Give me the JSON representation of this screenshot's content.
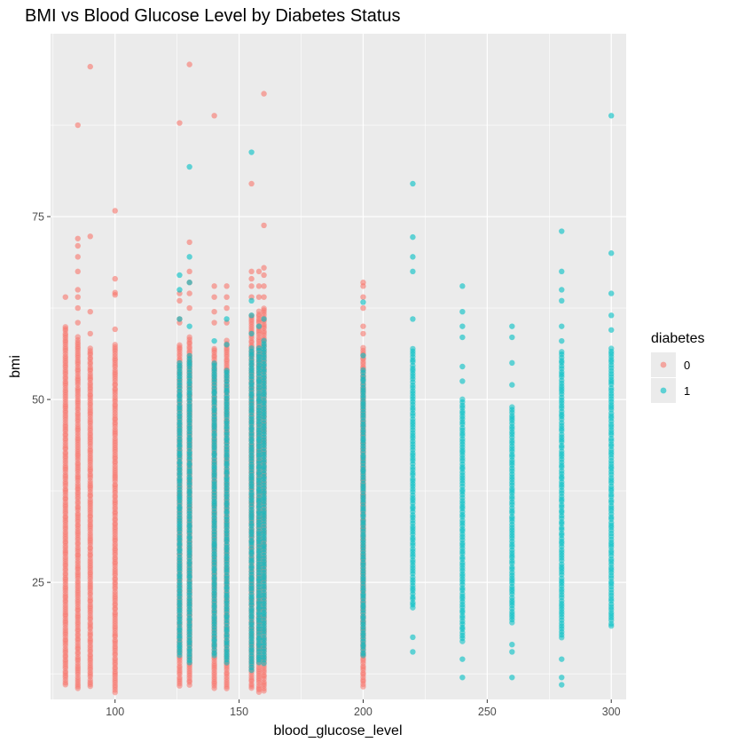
{
  "chart_data": {
    "type": "scatter",
    "title": "BMI vs Blood Glucose Level by Diabetes Status",
    "xlabel": "blood_glucose_level",
    "ylabel": "bmi",
    "xlim": [
      74,
      306
    ],
    "ylim": [
      9,
      100
    ],
    "x_ticks": [
      100,
      150,
      200,
      250,
      300
    ],
    "y_ticks": [
      25,
      50,
      75
    ],
    "grid": true,
    "legend": {
      "title": "diabetes",
      "placement": "right",
      "entries": [
        "0",
        "1"
      ]
    },
    "colors": {
      "0": "#F8766D",
      "1": "#00BFC4",
      "panel": "#EBEBEB",
      "grid_major": "#FFFFFF"
    },
    "series": [
      {
        "name": "0",
        "color": "#F8766D",
        "columns": [
          {
            "x": 80,
            "range": [
              11.0,
              60.0
            ],
            "outliers": [
              64.0
            ]
          },
          {
            "x": 85,
            "range": [
              10.5,
              58.5
            ],
            "outliers": [
              60.5,
              62.5,
              64.0,
              65.0,
              67.5,
              69.5,
              71.0,
              72.0,
              87.5
            ]
          },
          {
            "x": 90,
            "range": [
              10.8,
              57.0
            ],
            "outliers": [
              59.0,
              62.0,
              72.3,
              95.5
            ]
          },
          {
            "x": 100,
            "range": [
              10.0,
              57.5
            ],
            "outliers": [
              59.6,
              64.3,
              64.6,
              66.5,
              75.8
            ]
          },
          {
            "x": 126,
            "range": [
              10.8,
              57.5
            ],
            "outliers": [
              60.5,
              61.0,
              63.5,
              64.5,
              87.8
            ]
          },
          {
            "x": 130,
            "range": [
              11.0,
              58.5
            ],
            "outliers": [
              62.5,
              64.5,
              66.0,
              67.5,
              71.5,
              95.8
            ]
          },
          {
            "x": 140,
            "range": [
              10.5,
              57.0
            ],
            "outliers": [
              60.5,
              62.0,
              64.0,
              65.5,
              88.8
            ]
          },
          {
            "x": 145,
            "range": [
              10.5,
              58.0
            ],
            "outliers": [
              60.5,
              62.5,
              64.0,
              65.5
            ]
          },
          {
            "x": 155,
            "range": [
              10.5,
              61.5
            ],
            "outliers": [
              64.0,
              65.5,
              66.5,
              67.5,
              79.5
            ]
          },
          {
            "x": 158,
            "range": [
              10.0,
              62.0
            ],
            "outliers": [
              64.0,
              65.5,
              67.5
            ]
          },
          {
            "x": 160,
            "range": [
              10.2,
              62.5
            ],
            "outliers": [
              64.0,
              65.5,
              67.0,
              68.0,
              73.8,
              91.8
            ]
          },
          {
            "x": 200,
            "range": [
              10.8,
              57.0
            ],
            "outliers": [
              59.0,
              60.0,
              62.5,
              64.0,
              65.5,
              66.0
            ]
          }
        ]
      },
      {
        "name": "1",
        "color": "#00BFC4",
        "columns": [
          {
            "x": 126,
            "range": [
              15.0,
              55.0
            ],
            "outliers": [
              61.0,
              65.0,
              67.0
            ]
          },
          {
            "x": 130,
            "range": [
              14.0,
              56.0
            ],
            "outliers": [
              60.0,
              66.0,
              69.5,
              81.8
            ]
          },
          {
            "x": 140,
            "range": [
              15.0,
              55.0
            ],
            "outliers": [
              58.0
            ]
          },
          {
            "x": 145,
            "range": [
              14.0,
              54.0
            ],
            "outliers": [
              57.5,
              61.0
            ]
          },
          {
            "x": 155,
            "range": [
              13.0,
              57.0
            ],
            "outliers": [
              59.0,
              61.5,
              63.5,
              83.8
            ]
          },
          {
            "x": 158,
            "range": [
              14.0,
              57.0
            ],
            "outliers": [
              60.0
            ]
          },
          {
            "x": 160,
            "range": [
              14.0,
              58.0
            ],
            "outliers": [
              61.0
            ]
          },
          {
            "x": 200,
            "range": [
              15.0,
              54.0
            ],
            "outliers": [
              56.0,
              63.3
            ]
          },
          {
            "x": 220,
            "range": [
              21.5,
              57.0
            ],
            "outliers": [
              15.5,
              17.5,
              61.0,
              67.5,
              69.5,
              72.2,
              79.5
            ]
          },
          {
            "x": 240,
            "range": [
              17.0,
              50.0
            ],
            "outliers": [
              12.0,
              14.5,
              52.5,
              54.5,
              58.5,
              60.0,
              62.0,
              65.5
            ]
          },
          {
            "x": 260,
            "range": [
              19.5,
              49.0
            ],
            "outliers": [
              12.0,
              15.5,
              16.5,
              52.0,
              55.0,
              58.5,
              60.0
            ]
          },
          {
            "x": 280,
            "range": [
              17.5,
              56.5
            ],
            "outliers": [
              11.0,
              12.0,
              14.5,
              58.0,
              60.0,
              63.5,
              65.0,
              67.5,
              73.0
            ]
          },
          {
            "x": 300,
            "range": [
              19.0,
              57.0
            ],
            "outliers": [
              59.5,
              61.5,
              64.5,
              70.0,
              88.8
            ]
          }
        ]
      }
    ]
  }
}
